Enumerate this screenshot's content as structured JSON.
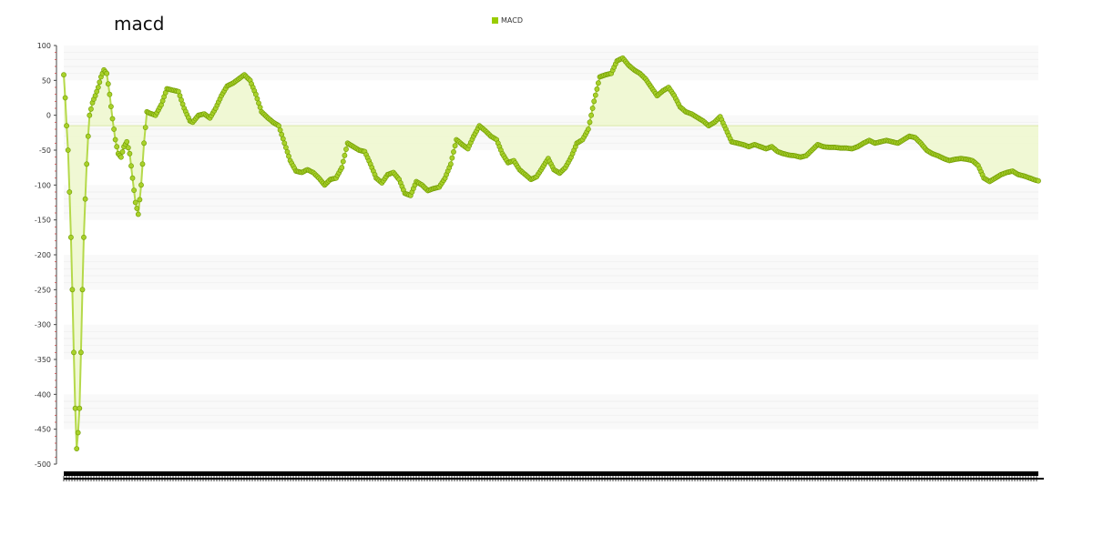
{
  "chart_data": {
    "type": "line",
    "title": "macd",
    "series": [
      {
        "name": "MACD",
        "color": "#99cc00",
        "fill": "#eef7cf",
        "points": [
          [
            0,
            58
          ],
          [
            0.5,
            25
          ],
          [
            1,
            -15
          ],
          [
            1.5,
            -50
          ],
          [
            2,
            -110
          ],
          [
            2.5,
            -175
          ],
          [
            3,
            -250
          ],
          [
            3.5,
            -340
          ],
          [
            4,
            -420
          ],
          [
            4.5,
            -478
          ],
          [
            5,
            -455
          ],
          [
            5.5,
            -420
          ],
          [
            6,
            -340
          ],
          [
            6.5,
            -250
          ],
          [
            7,
            -175
          ],
          [
            7.5,
            -120
          ],
          [
            8,
            -70
          ],
          [
            8.5,
            -30
          ],
          [
            9,
            0
          ],
          [
            10,
            18
          ],
          [
            11,
            28
          ],
          [
            12,
            40
          ],
          [
            13,
            55
          ],
          [
            14,
            65
          ],
          [
            15,
            60
          ],
          [
            16,
            30
          ],
          [
            17,
            -5
          ],
          [
            18,
            -35
          ],
          [
            19,
            -55
          ],
          [
            20,
            -60
          ],
          [
            21,
            -45
          ],
          [
            22,
            -38
          ],
          [
            23,
            -55
          ],
          [
            24,
            -90
          ],
          [
            25,
            -125
          ],
          [
            26,
            -142
          ],
          [
            27,
            -100
          ],
          [
            28,
            -40
          ],
          [
            29,
            5
          ],
          [
            30,
            3
          ],
          [
            32,
            0
          ],
          [
            34,
            15
          ],
          [
            36,
            38
          ],
          [
            38,
            36
          ],
          [
            40,
            34
          ],
          [
            42,
            10
          ],
          [
            44,
            -8
          ],
          [
            45,
            -10
          ],
          [
            47,
            0
          ],
          [
            49,
            2
          ],
          [
            51,
            -4
          ],
          [
            53,
            10
          ],
          [
            55,
            28
          ],
          [
            57,
            42
          ],
          [
            59,
            46
          ],
          [
            61,
            52
          ],
          [
            63,
            58
          ],
          [
            65,
            50
          ],
          [
            67,
            30
          ],
          [
            69,
            5
          ],
          [
            71,
            -3
          ],
          [
            73,
            -10
          ],
          [
            75,
            -15
          ],
          [
            77,
            -40
          ],
          [
            79,
            -65
          ],
          [
            81,
            -80
          ],
          [
            83,
            -82
          ],
          [
            85,
            -78
          ],
          [
            87,
            -82
          ],
          [
            89,
            -90
          ],
          [
            91,
            -100
          ],
          [
            93,
            -92
          ],
          [
            95,
            -90
          ],
          [
            97,
            -75
          ],
          [
            99,
            -40
          ],
          [
            101,
            -45
          ],
          [
            103,
            -50
          ],
          [
            105,
            -52
          ],
          [
            107,
            -70
          ],
          [
            109,
            -90
          ],
          [
            111,
            -97
          ],
          [
            113,
            -85
          ],
          [
            115,
            -82
          ],
          [
            117,
            -92
          ],
          [
            119,
            -112
          ],
          [
            121,
            -115
          ],
          [
            123,
            -95
          ],
          [
            125,
            -100
          ],
          [
            127,
            -108
          ],
          [
            129,
            -105
          ],
          [
            131,
            -103
          ],
          [
            133,
            -90
          ],
          [
            135,
            -70
          ],
          [
            137,
            -35
          ],
          [
            139,
            -42
          ],
          [
            141,
            -48
          ],
          [
            143,
            -30
          ],
          [
            145,
            -15
          ],
          [
            147,
            -22
          ],
          [
            149,
            -30
          ],
          [
            151,
            -35
          ],
          [
            153,
            -55
          ],
          [
            155,
            -68
          ],
          [
            157,
            -65
          ],
          [
            159,
            -78
          ],
          [
            161,
            -85
          ],
          [
            163,
            -92
          ],
          [
            165,
            -88
          ],
          [
            167,
            -75
          ],
          [
            169,
            -62
          ],
          [
            171,
            -78
          ],
          [
            173,
            -83
          ],
          [
            175,
            -75
          ],
          [
            177,
            -60
          ],
          [
            179,
            -40
          ],
          [
            181,
            -35
          ],
          [
            183,
            -20
          ],
          [
            185,
            20
          ],
          [
            187,
            55
          ],
          [
            189,
            58
          ],
          [
            191,
            60
          ],
          [
            193,
            78
          ],
          [
            195,
            82
          ],
          [
            197,
            72
          ],
          [
            199,
            65
          ],
          [
            201,
            60
          ],
          [
            203,
            52
          ],
          [
            205,
            40
          ],
          [
            207,
            28
          ],
          [
            209,
            35
          ],
          [
            211,
            40
          ],
          [
            213,
            28
          ],
          [
            215,
            12
          ],
          [
            217,
            5
          ],
          [
            219,
            2
          ],
          [
            221,
            -3
          ],
          [
            223,
            -8
          ],
          [
            225,
            -15
          ],
          [
            227,
            -10
          ],
          [
            229,
            -2
          ],
          [
            231,
            -20
          ],
          [
            233,
            -38
          ],
          [
            235,
            -40
          ],
          [
            237,
            -42
          ],
          [
            239,
            -45
          ],
          [
            241,
            -42
          ],
          [
            243,
            -45
          ],
          [
            245,
            -48
          ],
          [
            247,
            -45
          ],
          [
            249,
            -52
          ],
          [
            251,
            -55
          ],
          [
            253,
            -57
          ],
          [
            255,
            -58
          ],
          [
            257,
            -60
          ],
          [
            259,
            -58
          ],
          [
            261,
            -50
          ],
          [
            263,
            -42
          ],
          [
            265,
            -45
          ],
          [
            267,
            -46
          ],
          [
            269,
            -46
          ],
          [
            271,
            -47
          ],
          [
            273,
            -47
          ],
          [
            275,
            -48
          ],
          [
            277,
            -45
          ],
          [
            279,
            -40
          ],
          [
            281,
            -36
          ],
          [
            283,
            -40
          ],
          [
            285,
            -38
          ],
          [
            287,
            -36
          ],
          [
            289,
            -38
          ],
          [
            291,
            -40
          ],
          [
            293,
            -35
          ],
          [
            295,
            -30
          ],
          [
            297,
            -32
          ],
          [
            299,
            -40
          ],
          [
            301,
            -50
          ],
          [
            303,
            -55
          ],
          [
            305,
            -58
          ],
          [
            307,
            -62
          ],
          [
            309,
            -65
          ],
          [
            311,
            -63
          ],
          [
            313,
            -62
          ],
          [
            315,
            -63
          ],
          [
            317,
            -65
          ],
          [
            319,
            -72
          ],
          [
            321,
            -90
          ],
          [
            323,
            -95
          ],
          [
            325,
            -90
          ],
          [
            327,
            -85
          ],
          [
            329,
            -82
          ],
          [
            331,
            -80
          ],
          [
            333,
            -85
          ],
          [
            335,
            -87
          ],
          [
            337,
            -90
          ],
          [
            339,
            -93
          ],
          [
            340,
            -94
          ]
        ]
      }
    ],
    "ylim": [
      -500,
      100
    ],
    "xlim": [
      0,
      340
    ],
    "y_ticks": [
      "100",
      "50",
      "0",
      "-50",
      "-100",
      "-150",
      "-200",
      "-250",
      "-300",
      "-350",
      "-400",
      "-450",
      "-500"
    ],
    "baseline": -15,
    "grid": "horizontal-bands",
    "legend_position": "top-center"
  }
}
